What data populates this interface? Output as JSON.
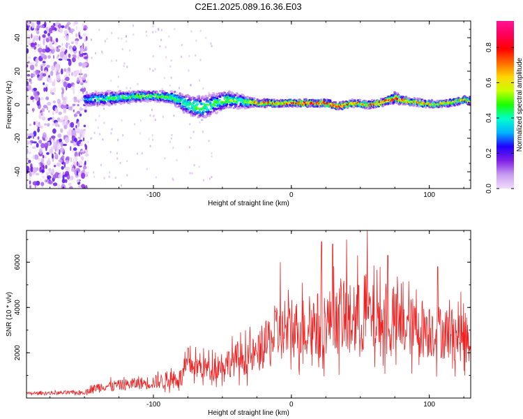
{
  "title": "C2E1.2025.089.16.36.E03",
  "chart_data": [
    {
      "type": "heatmap",
      "xlabel": "Height of straight line (km)",
      "ylabel": "Frequency (Hz)",
      "xlim": [
        -192,
        130
      ],
      "ylim": [
        -50,
        50
      ],
      "x_ticks": [
        -100,
        0,
        100
      ],
      "x_tick_labels": [
        "-100",
        "0",
        "100"
      ],
      "y_ticks": [
        -40,
        -20,
        0,
        20,
        40
      ],
      "y_tick_labels": [
        "-40",
        "-20",
        "0",
        "20",
        "40"
      ],
      "colorbar": {
        "label": "Normalized spectral amplitude",
        "range": [
          0,
          0.95
        ],
        "ticks": [
          0,
          0.2,
          0.4,
          0.6,
          0.8
        ],
        "tick_labels": [
          "0.0",
          "0.2",
          "0.4",
          "0.6",
          "0.8"
        ],
        "colors": [
          "#f2dcfb",
          "#c79cf0",
          "#7f1fe6",
          "#2200ff",
          "#00b3ff",
          "#00ffcc",
          "#1aff00",
          "#c8ff00",
          "#ffd400",
          "#ff6a00",
          "#ff0000",
          "#ff005a",
          "#ff1493"
        ]
      },
      "ridge": {
        "description_free": true,
        "x": [
          -150,
          -130,
          -110,
          -95,
          -85,
          -75,
          -65,
          -55,
          -45,
          -35,
          -25,
          -15,
          -5,
          5,
          15,
          25,
          35,
          45,
          55,
          65,
          75,
          85,
          95,
          105,
          115,
          125,
          130
        ],
        "center_freq": [
          3,
          4,
          5,
          5,
          4,
          0,
          -2,
          1,
          3,
          2,
          1,
          1,
          1,
          1,
          1,
          1,
          -1,
          1,
          0,
          1,
          4,
          2,
          1,
          0,
          1,
          3,
          2
        ],
        "half_width": [
          4,
          4,
          3,
          3,
          4,
          6,
          7,
          6,
          5,
          4,
          2,
          2,
          2,
          2,
          2,
          2,
          2,
          2,
          2,
          2,
          3,
          2,
          2,
          2,
          2,
          2,
          2
        ],
        "amplitude": [
          0.35,
          0.45,
          0.5,
          0.5,
          0.45,
          0.45,
          0.5,
          0.45,
          0.5,
          0.5,
          0.7,
          0.75,
          0.8,
          0.8,
          0.85,
          0.85,
          0.8,
          0.75,
          0.7,
          0.7,
          0.8,
          0.75,
          0.7,
          0.65,
          0.65,
          0.7,
          0.65
        ]
      },
      "noise_region_x": [
        -192,
        -148
      ]
    },
    {
      "type": "line",
      "xlabel": "Height of straight line (km)",
      "ylabel": "SNR (10 * v/v)",
      "xlim": [
        -192,
        130
      ],
      "ylim": [
        0,
        7400
      ],
      "x_ticks": [
        -100,
        0,
        100
      ],
      "x_tick_labels": [
        "-100",
        "0",
        "100"
      ],
      "y_ticks": [
        2000,
        4000,
        6000
      ],
      "y_tick_labels": [
        "2000",
        "4000",
        "6000"
      ],
      "color": "#ee2222",
      "envelope": {
        "x": [
          -192,
          -150,
          -140,
          -120,
          -100,
          -80,
          -75,
          -60,
          -40,
          -25,
          -15,
          0,
          20,
          40,
          55,
          70,
          90,
          110,
          130
        ],
        "mean": [
          200,
          250,
          500,
          600,
          700,
          900,
          1500,
          1300,
          1700,
          1900,
          2600,
          3000,
          3300,
          3500,
          3500,
          3300,
          3100,
          2900,
          2700
        ],
        "amp": [
          100,
          150,
          350,
          400,
          500,
          700,
          900,
          900,
          1200,
          1400,
          1900,
          2100,
          2400,
          2600,
          2700,
          2500,
          2200,
          2000,
          1900
        ]
      },
      "peaks": [
        {
          "x": -75,
          "y": 2200
        },
        {
          "x": -8,
          "y": 6000
        },
        {
          "x": 8,
          "y": 5100
        },
        {
          "x": 22,
          "y": 6900
        },
        {
          "x": 30,
          "y": 6800
        },
        {
          "x": 40,
          "y": 7000
        },
        {
          "x": 48,
          "y": 6300
        },
        {
          "x": 55,
          "y": 7400
        },
        {
          "x": 70,
          "y": 6300
        },
        {
          "x": 106,
          "y": 5800
        }
      ]
    }
  ]
}
